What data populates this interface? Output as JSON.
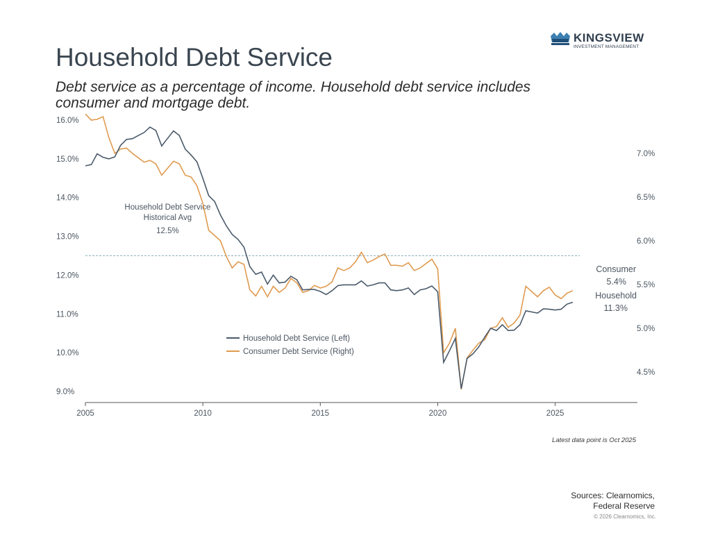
{
  "header": {
    "title": "Household Debt Service",
    "subtitle": "Debt service as a percentage of income. Household debt service includes consumer and mortgage debt."
  },
  "logo": {
    "name": "KINGSVIEW",
    "tagline": "INVESTMENT MANAGEMENT"
  },
  "footer": {
    "note": "Latest data point is Oct 2025",
    "sources_line1": "Sources: Clearnomics,",
    "sources_line2": "Federal Reserve",
    "copyright": "© 2026 Clearnomics, Inc."
  },
  "colors": {
    "household": "#4a5a6a",
    "consumer": "#e09a4f",
    "avg_line": "#8ab0bd",
    "axis": "#555555"
  },
  "chart_data": {
    "type": "line",
    "title": "Household Debt Service",
    "x_range": [
      2005,
      2028.5
    ],
    "x_ticks": [
      2005,
      2010,
      2015,
      2020,
      2025
    ],
    "x_tick_labels": [
      "2005",
      "2010",
      "2015",
      "2020",
      "2025"
    ],
    "left_axis": {
      "range": [
        9.0,
        16.0
      ],
      "ticks": [
        9,
        10,
        11,
        12,
        13,
        14,
        15,
        16
      ],
      "tick_labels": [
        "9.0%",
        "10.0%",
        "11.0%",
        "12.0%",
        "13.0%",
        "14.0%",
        "15.0%",
        "16.0%"
      ]
    },
    "right_axis": {
      "range": [
        4.122,
        7.148
      ],
      "ticks": [
        4.5,
        5.0,
        5.5,
        6.0,
        6.5,
        7.0
      ],
      "tick_labels": [
        "4.5%",
        "5.0%",
        "5.5%",
        "6.0%",
        "6.5%",
        "7.0%"
      ]
    },
    "historical_avg": {
      "value": 12.5,
      "label_line1": "Household Debt Service",
      "label_line2": "Historical Avg",
      "label_line3": "12.5%"
    },
    "legend": {
      "household": "Household Debt Service (Left)",
      "consumer": "Consumer Debt Service (Right)"
    },
    "end_labels": {
      "consumer_name": "Consumer",
      "consumer_value": "5.4%",
      "household_name": "Household",
      "household_value": "11.3%"
    },
    "series": [
      {
        "name": "Household Debt Service (Left)",
        "axis": "left",
        "points": [
          [
            2005.0,
            14.82
          ],
          [
            2005.25,
            14.85
          ],
          [
            2005.5,
            15.13
          ],
          [
            2005.75,
            15.04
          ],
          [
            2006.0,
            15.0
          ],
          [
            2006.25,
            15.05
          ],
          [
            2006.5,
            15.35
          ],
          [
            2006.75,
            15.5
          ],
          [
            2007.0,
            15.52
          ],
          [
            2007.25,
            15.6
          ],
          [
            2007.5,
            15.68
          ],
          [
            2007.75,
            15.82
          ],
          [
            2008.0,
            15.73
          ],
          [
            2008.25,
            15.33
          ],
          [
            2008.5,
            15.53
          ],
          [
            2008.75,
            15.72
          ],
          [
            2009.0,
            15.6
          ],
          [
            2009.25,
            15.25
          ],
          [
            2009.5,
            15.1
          ],
          [
            2009.75,
            14.92
          ],
          [
            2010.0,
            14.5
          ],
          [
            2010.25,
            14.05
          ],
          [
            2010.5,
            13.9
          ],
          [
            2010.75,
            13.55
          ],
          [
            2011.0,
            13.27
          ],
          [
            2011.25,
            13.05
          ],
          [
            2011.5,
            12.92
          ],
          [
            2011.75,
            12.72
          ],
          [
            2012.0,
            12.22
          ],
          [
            2012.25,
            12.02
          ],
          [
            2012.5,
            12.08
          ],
          [
            2012.75,
            11.77
          ],
          [
            2013.0,
            12.0
          ],
          [
            2013.25,
            11.8
          ],
          [
            2013.5,
            11.82
          ],
          [
            2013.75,
            11.97
          ],
          [
            2014.0,
            11.88
          ],
          [
            2014.25,
            11.62
          ],
          [
            2014.5,
            11.63
          ],
          [
            2014.75,
            11.63
          ],
          [
            2015.0,
            11.58
          ],
          [
            2015.25,
            11.5
          ],
          [
            2015.5,
            11.6
          ],
          [
            2015.75,
            11.73
          ],
          [
            2016.0,
            11.75
          ],
          [
            2016.25,
            11.75
          ],
          [
            2016.5,
            11.75
          ],
          [
            2016.75,
            11.85
          ],
          [
            2017.0,
            11.72
          ],
          [
            2017.25,
            11.75
          ],
          [
            2017.5,
            11.8
          ],
          [
            2017.75,
            11.8
          ],
          [
            2018.0,
            11.62
          ],
          [
            2018.25,
            11.6
          ],
          [
            2018.5,
            11.62
          ],
          [
            2018.75,
            11.67
          ],
          [
            2019.0,
            11.5
          ],
          [
            2019.25,
            11.62
          ],
          [
            2019.5,
            11.65
          ],
          [
            2019.75,
            11.72
          ],
          [
            2020.0,
            11.57
          ],
          [
            2020.25,
            9.75
          ],
          [
            2020.5,
            10.05
          ],
          [
            2020.75,
            10.37
          ],
          [
            2021.0,
            9.07
          ],
          [
            2021.25,
            9.85
          ],
          [
            2021.5,
            9.97
          ],
          [
            2021.75,
            10.15
          ],
          [
            2022.0,
            10.4
          ],
          [
            2022.25,
            10.63
          ],
          [
            2022.5,
            10.57
          ],
          [
            2022.75,
            10.72
          ],
          [
            2023.0,
            10.57
          ],
          [
            2023.25,
            10.58
          ],
          [
            2023.5,
            10.72
          ],
          [
            2023.75,
            11.08
          ],
          [
            2024.0,
            11.05
          ],
          [
            2024.25,
            11.02
          ],
          [
            2024.5,
            11.13
          ],
          [
            2024.75,
            11.12
          ],
          [
            2025.0,
            11.1
          ],
          [
            2025.25,
            11.12
          ],
          [
            2025.5,
            11.25
          ],
          [
            2025.75,
            11.3
          ]
        ]
      },
      {
        "name": "Consumer Debt Service (Right)",
        "axis": "right",
        "points": [
          [
            2005.0,
            7.45
          ],
          [
            2005.25,
            7.38
          ],
          [
            2005.5,
            7.39
          ],
          [
            2005.75,
            7.42
          ],
          [
            2006.0,
            7.18
          ],
          [
            2006.25,
            7.0
          ],
          [
            2006.5,
            7.05
          ],
          [
            2006.75,
            7.06
          ],
          [
            2007.0,
            7.0
          ],
          [
            2007.25,
            6.95
          ],
          [
            2007.5,
            6.9
          ],
          [
            2007.75,
            6.92
          ],
          [
            2008.0,
            6.88
          ],
          [
            2008.25,
            6.75
          ],
          [
            2008.5,
            6.83
          ],
          [
            2008.75,
            6.91
          ],
          [
            2009.0,
            6.88
          ],
          [
            2009.25,
            6.75
          ],
          [
            2009.5,
            6.73
          ],
          [
            2009.75,
            6.63
          ],
          [
            2010.0,
            6.43
          ],
          [
            2010.25,
            6.12
          ],
          [
            2010.5,
            6.06
          ],
          [
            2010.75,
            6.0
          ],
          [
            2011.0,
            5.82
          ],
          [
            2011.25,
            5.69
          ],
          [
            2011.5,
            5.76
          ],
          [
            2011.75,
            5.73
          ],
          [
            2012.0,
            5.44
          ],
          [
            2012.25,
            5.37
          ],
          [
            2012.5,
            5.48
          ],
          [
            2012.75,
            5.36
          ],
          [
            2013.0,
            5.48
          ],
          [
            2013.25,
            5.41
          ],
          [
            2013.5,
            5.46
          ],
          [
            2013.75,
            5.57
          ],
          [
            2014.0,
            5.52
          ],
          [
            2014.25,
            5.41
          ],
          [
            2014.5,
            5.43
          ],
          [
            2014.75,
            5.49
          ],
          [
            2015.0,
            5.46
          ],
          [
            2015.25,
            5.48
          ],
          [
            2015.5,
            5.53
          ],
          [
            2015.75,
            5.69
          ],
          [
            2016.0,
            5.66
          ],
          [
            2016.25,
            5.69
          ],
          [
            2016.5,
            5.76
          ],
          [
            2016.75,
            5.87
          ],
          [
            2017.0,
            5.75
          ],
          [
            2017.25,
            5.78
          ],
          [
            2017.5,
            5.82
          ],
          [
            2017.75,
            5.85
          ],
          [
            2018.0,
            5.72
          ],
          [
            2018.25,
            5.72
          ],
          [
            2018.5,
            5.71
          ],
          [
            2018.75,
            5.75
          ],
          [
            2019.0,
            5.66
          ],
          [
            2019.25,
            5.69
          ],
          [
            2019.5,
            5.74
          ],
          [
            2019.75,
            5.79
          ],
          [
            2020.0,
            5.68
          ],
          [
            2020.25,
            4.72
          ],
          [
            2020.5,
            4.83
          ],
          [
            2020.75,
            5.0
          ],
          [
            2021.0,
            4.3
          ],
          [
            2021.25,
            4.66
          ],
          [
            2021.5,
            4.75
          ],
          [
            2021.75,
            4.83
          ],
          [
            2022.0,
            4.87
          ],
          [
            2022.25,
            5.0
          ],
          [
            2022.5,
            5.02
          ],
          [
            2022.75,
            5.12
          ],
          [
            2023.0,
            5.01
          ],
          [
            2023.25,
            5.06
          ],
          [
            2023.5,
            5.15
          ],
          [
            2023.75,
            5.48
          ],
          [
            2024.0,
            5.42
          ],
          [
            2024.25,
            5.36
          ],
          [
            2024.5,
            5.43
          ],
          [
            2024.75,
            5.47
          ],
          [
            2025.0,
            5.38
          ],
          [
            2025.25,
            5.34
          ],
          [
            2025.5,
            5.4
          ],
          [
            2025.75,
            5.43
          ]
        ]
      }
    ]
  }
}
